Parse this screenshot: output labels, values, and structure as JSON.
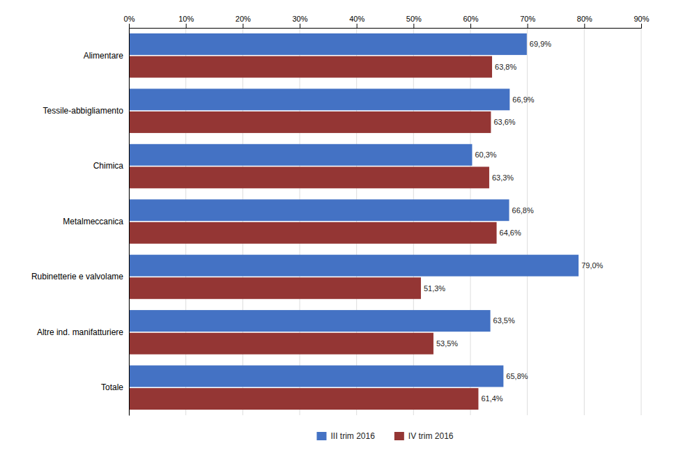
{
  "chart_data": {
    "type": "bar",
    "orientation": "horizontal",
    "categories": [
      "Alimentare",
      "Tessile-abbigliamento",
      "Chimica",
      "Metalmeccanica",
      "Rubinetterie e valvolame",
      "Altre ind. manifatturiere",
      "Totale"
    ],
    "series": [
      {
        "name": "III trim 2016",
        "color": "#4472C4",
        "values": [
          69.9,
          66.9,
          60.3,
          66.8,
          79.0,
          63.5,
          65.8
        ],
        "value_labels": [
          "69,9%",
          "66,9%",
          "60,3%",
          "66,8%",
          "79,0%",
          "63,5%",
          "65,8%"
        ]
      },
      {
        "name": "IV trim 2016",
        "color": "#943634",
        "values": [
          63.8,
          63.6,
          63.3,
          64.6,
          51.3,
          53.5,
          61.4
        ],
        "value_labels": [
          "63,8%",
          "63,6%",
          "63,3%",
          "64,6%",
          "51,3%",
          "53,5%",
          "61,4%"
        ]
      }
    ],
    "xlim": [
      0,
      90
    ],
    "xticks": [
      {
        "value": 0,
        "label": "0%"
      },
      {
        "value": 10,
        "label": "10%"
      },
      {
        "value": 20,
        "label": "20%"
      },
      {
        "value": 30,
        "label": "30%"
      },
      {
        "value": 40,
        "label": "40%"
      },
      {
        "value": 50,
        "label": "50%"
      },
      {
        "value": 60,
        "label": "60%"
      },
      {
        "value": 70,
        "label": "70%"
      },
      {
        "value": 80,
        "label": "80%"
      },
      {
        "value": 90,
        "label": "90%"
      }
    ],
    "grid": true,
    "data_labels": true,
    "legend": "bottom"
  }
}
